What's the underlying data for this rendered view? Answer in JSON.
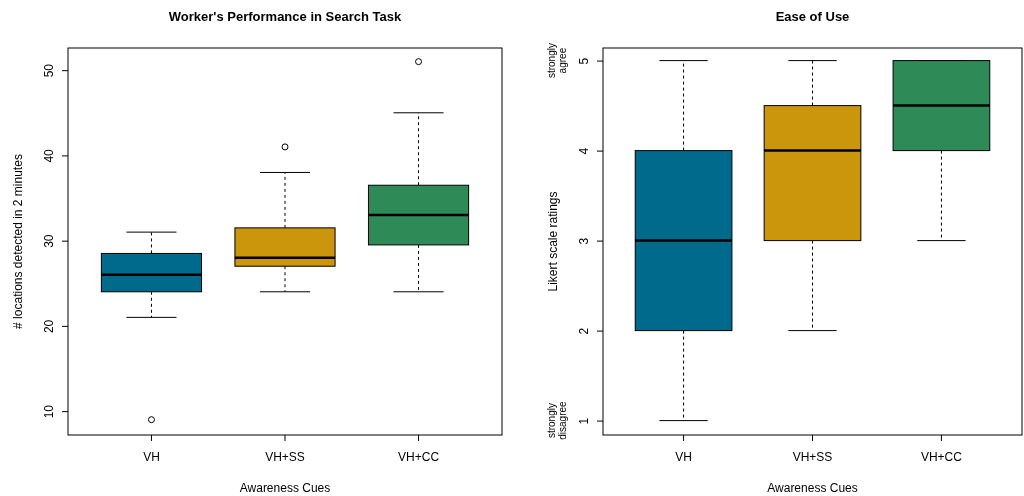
{
  "chart_data": [
    {
      "type": "box",
      "title": "Worker's Performance in Search Task",
      "xlabel": "Awareness Cues",
      "ylabel": "# locations detected in 2 minutes",
      "categories": [
        "VH",
        "VH+SS",
        "VH+CC"
      ],
      "colors": [
        "#006a8c",
        "#cc960c",
        "#2e8b57"
      ],
      "ylim": [
        7.2,
        52.6
      ],
      "yticks": [
        10,
        20,
        30,
        40,
        50
      ],
      "boxes": [
        {
          "low": 21,
          "q1": 24,
          "median": 26,
          "q3": 28.5,
          "high": 31,
          "outliers": [
            9
          ]
        },
        {
          "low": 24,
          "q1": 27,
          "median": 28,
          "q3": 31.5,
          "high": 38,
          "outliers": [
            41
          ]
        },
        {
          "low": 24,
          "q1": 29.5,
          "median": 33,
          "q3": 36.5,
          "high": 45,
          "outliers": [
            51
          ]
        }
      ]
    },
    {
      "type": "box",
      "title": "Ease of Use",
      "xlabel": "Awareness Cues",
      "ylabel": "Likert scale ratings",
      "categories": [
        "VH",
        "VH+SS",
        "VH+CC"
      ],
      "colors": [
        "#006a8c",
        "#cc960c",
        "#2e8b57"
      ],
      "ylim": [
        0.84,
        5.14
      ],
      "yticks": [
        1,
        2,
        3,
        4,
        5
      ],
      "annotations": [
        "strongly agree",
        "strongly disagree"
      ],
      "boxes": [
        {
          "low": 1,
          "q1": 2,
          "median": 3,
          "q3": 4,
          "high": 5
        },
        {
          "low": 2,
          "q1": 3,
          "median": 4,
          "q3": 4.5,
          "high": 5
        },
        {
          "low": 3,
          "q1": 4,
          "median": 4.5,
          "q3": 5,
          "high": 5
        }
      ]
    }
  ]
}
